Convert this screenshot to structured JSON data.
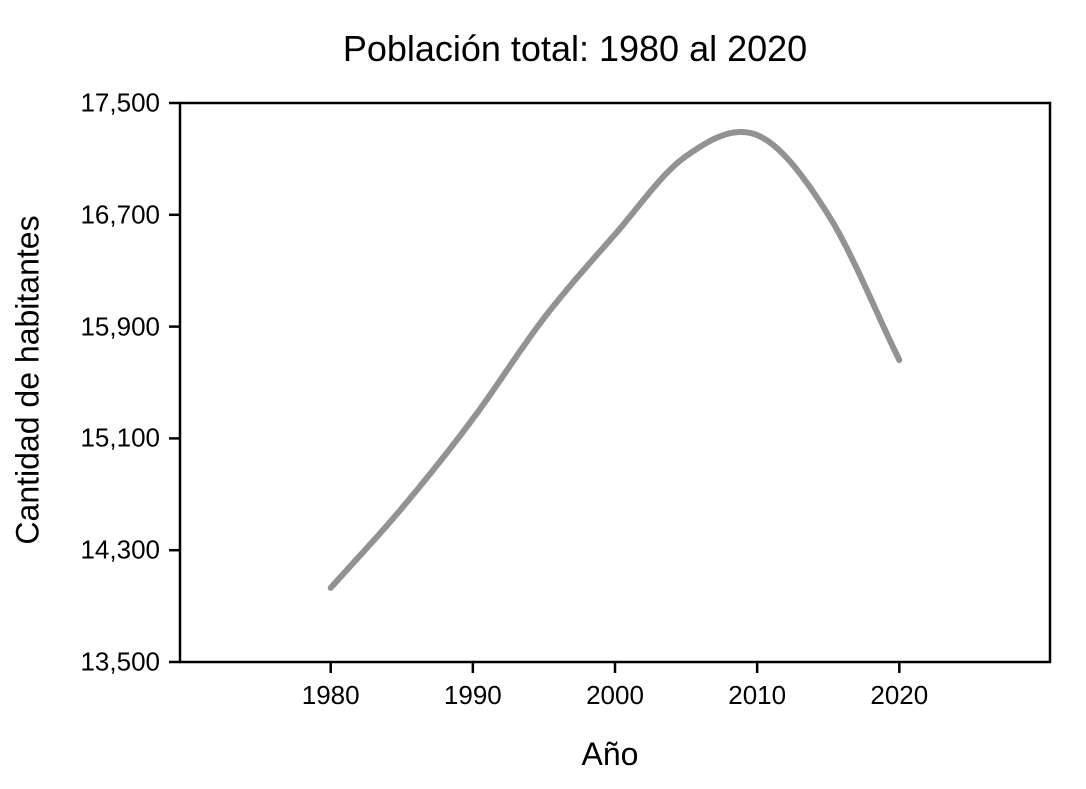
{
  "chart_data": {
    "type": "line",
    "title": "Población total: 1980 al 2020",
    "xlabel": "Año",
    "ylabel": "Cantidad de habitantes",
    "x": [
      1980,
      1985,
      1990,
      1995,
      2000,
      2005,
      2010,
      2015,
      2020
    ],
    "series": [
      {
        "name": "Población total",
        "values": [
          14030,
          14600,
          15240,
          15960,
          16560,
          17120,
          17270,
          16700,
          15660
        ]
      }
    ],
    "peak_approx": {
      "year": 2009,
      "value": 17290
    },
    "xticks": [
      1980,
      1990,
      2000,
      2010,
      2020
    ],
    "xtick_labels": [
      "1980",
      "1990",
      "2000",
      "2010",
      "2020"
    ],
    "yticks": [
      13500,
      14300,
      15100,
      15900,
      16700,
      17500
    ],
    "ytick_labels": [
      "13,500",
      "14,300",
      "15,100",
      "15,900",
      "16,700",
      "17,500"
    ],
    "xlim": [
      1969.4,
      2030.6
    ],
    "ylim": [
      13500,
      17500
    ],
    "grid": false,
    "legend": "none",
    "smooth": true,
    "line_color": "#929292",
    "line_width": 6,
    "frame_color": "#000000",
    "background_color": "#ffffff",
    "text_color": "#000000"
  }
}
